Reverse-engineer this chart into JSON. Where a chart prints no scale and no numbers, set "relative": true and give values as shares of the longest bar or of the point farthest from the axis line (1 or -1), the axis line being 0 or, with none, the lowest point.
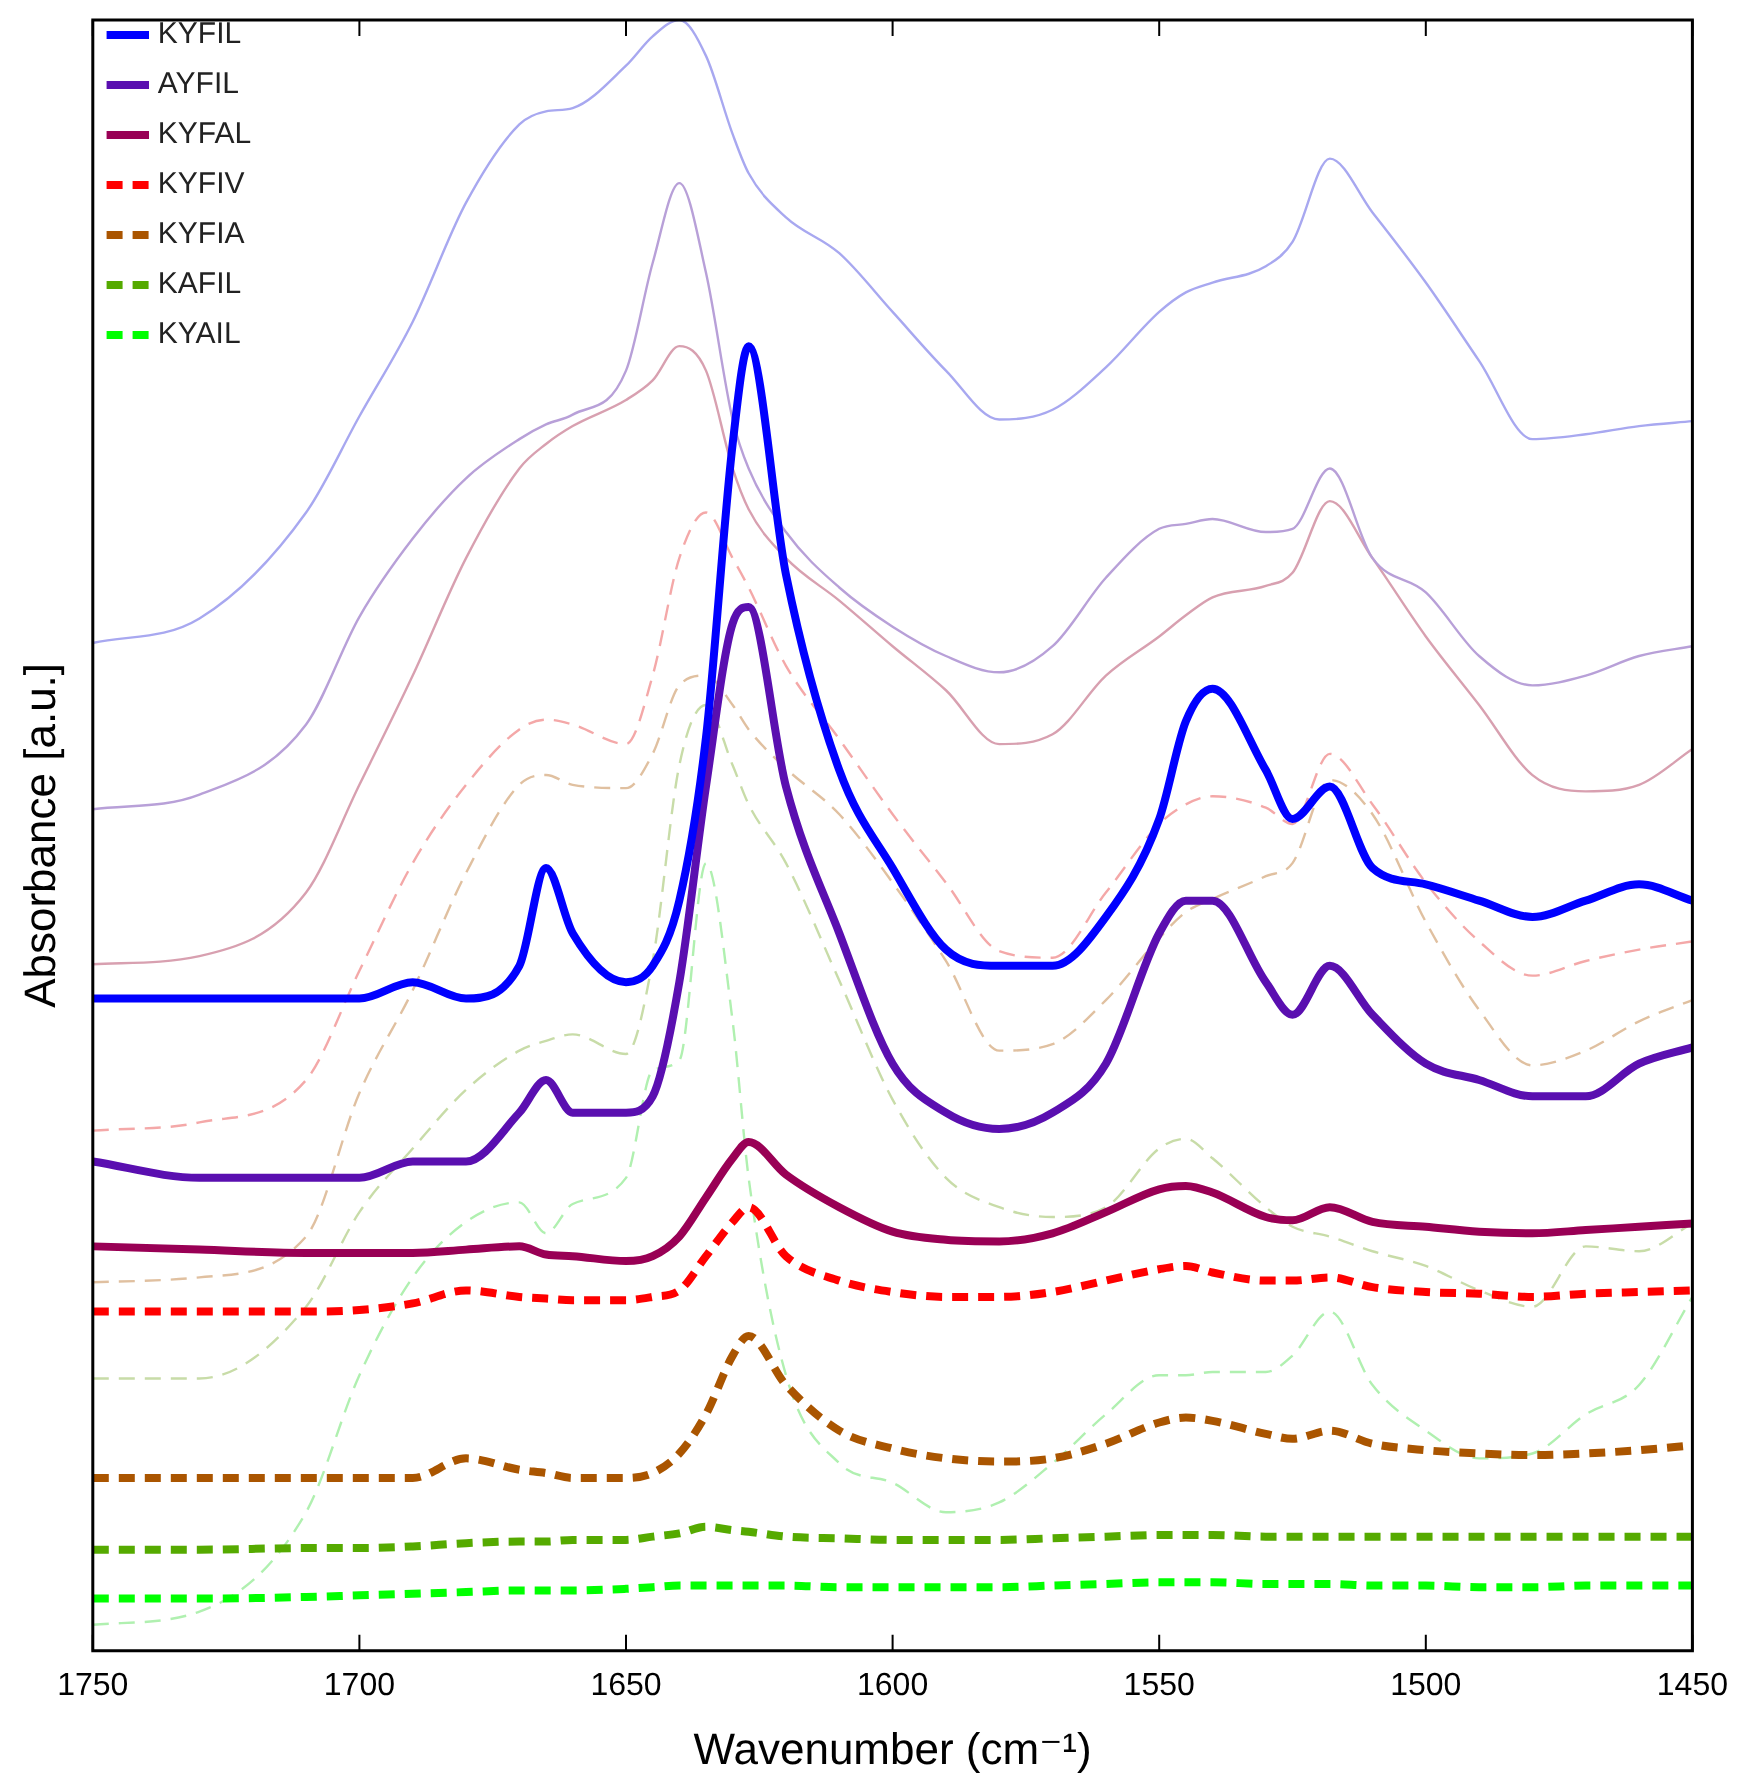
{
  "chart_data": {
    "type": "line",
    "xlabel": "Wavenumber (cm⁻¹)",
    "ylabel": "Absorbance [a.u.]",
    "relative": true,
    "legend": "top left",
    "grid": false,
    "marker": "none",
    "x": [
      1750,
      1730,
      1710,
      1700,
      1690,
      1680,
      1670,
      1665,
      1660,
      1650,
      1645,
      1640,
      1635,
      1630,
      1627,
      1620,
      1610,
      1600,
      1590,
      1580,
      1570,
      1560,
      1550,
      1545,
      1540,
      1530,
      1525,
      1518,
      1510,
      1500,
      1490,
      1480,
      1470,
      1460,
      1450
    ],
    "xlim": [
      1750,
      1450
    ],
    "xticks": [
      1750,
      1700,
      1650,
      1600,
      1550,
      1500,
      1450
    ],
    "series": [
      {
        "name": "KYFIL",
        "color": "#0000ff",
        "line_style": "solid",
        "values": [
          0.4,
          0.4,
          0.4,
          0.4,
          0.41,
          0.4,
          0.42,
          0.48,
          0.44,
          0.41,
          0.42,
          0.46,
          0.56,
          0.74,
          0.8,
          0.66,
          0.54,
          0.48,
          0.43,
          0.42,
          0.42,
          0.45,
          0.51,
          0.57,
          0.59,
          0.54,
          0.51,
          0.53,
          0.48,
          0.47,
          0.46,
          0.45,
          0.46,
          0.47,
          0.46
        ]
      },
      {
        "name": "AYFIL",
        "color": "#5a0fb0",
        "line_style": "solid",
        "values": [
          0.3,
          0.29,
          0.29,
          0.29,
          0.3,
          0.3,
          0.33,
          0.35,
          0.33,
          0.33,
          0.34,
          0.41,
          0.53,
          0.63,
          0.64,
          0.53,
          0.44,
          0.36,
          0.33,
          0.32,
          0.33,
          0.36,
          0.44,
          0.46,
          0.46,
          0.41,
          0.39,
          0.42,
          0.39,
          0.36,
          0.35,
          0.34,
          0.34,
          0.36,
          0.37
        ]
      },
      {
        "name": "KYFAL",
        "color": "#990055",
        "line_style": "solid",
        "values": [
          0.248,
          0.246,
          0.244,
          0.244,
          0.244,
          0.246,
          0.248,
          0.243,
          0.242,
          0.239,
          0.242,
          0.254,
          0.278,
          0.302,
          0.312,
          0.292,
          0.272,
          0.257,
          0.252,
          0.251,
          0.256,
          0.269,
          0.283,
          0.285,
          0.281,
          0.266,
          0.264,
          0.272,
          0.263,
          0.26,
          0.257,
          0.256,
          0.258,
          0.26,
          0.262
        ]
      },
      {
        "name": "KYFIV",
        "color": "#ff0000",
        "line_style": "dashed",
        "values": [
          0.208,
          0.208,
          0.208,
          0.209,
          0.213,
          0.221,
          0.217,
          0.216,
          0.215,
          0.215,
          0.217,
          0.221,
          0.242,
          0.263,
          0.272,
          0.242,
          0.227,
          0.22,
          0.217,
          0.217,
          0.22,
          0.227,
          0.234,
          0.236,
          0.232,
          0.227,
          0.227,
          0.229,
          0.223,
          0.22,
          0.219,
          0.217,
          0.219,
          0.22,
          0.221
        ]
      },
      {
        "name": "KYFIA",
        "color": "#aa5500",
        "line_style": "dashed",
        "values": [
          0.106,
          0.106,
          0.106,
          0.106,
          0.106,
          0.118,
          0.111,
          0.109,
          0.106,
          0.106,
          0.109,
          0.121,
          0.145,
          0.181,
          0.193,
          0.163,
          0.135,
          0.124,
          0.118,
          0.116,
          0.118,
          0.127,
          0.14,
          0.143,
          0.141,
          0.133,
          0.13,
          0.135,
          0.127,
          0.123,
          0.121,
          0.12,
          0.121,
          0.123,
          0.126
        ]
      },
      {
        "name": "KAFIL",
        "color": "#55aa00",
        "line_style": "dashed",
        "values": [
          0.062,
          0.062,
          0.063,
          0.063,
          0.064,
          0.066,
          0.067,
          0.067,
          0.068,
          0.068,
          0.07,
          0.072,
          0.076,
          0.074,
          0.073,
          0.07,
          0.069,
          0.068,
          0.068,
          0.068,
          0.069,
          0.07,
          0.071,
          0.071,
          0.071,
          0.07,
          0.07,
          0.07,
          0.07,
          0.07,
          0.07,
          0.07,
          0.07,
          0.07,
          0.07
        ]
      },
      {
        "name": "KYAIL",
        "color": "#00ff00",
        "line_style": "dashed",
        "values": [
          0.032,
          0.032,
          0.033,
          0.034,
          0.035,
          0.036,
          0.037,
          0.037,
          0.037,
          0.038,
          0.039,
          0.04,
          0.04,
          0.04,
          0.04,
          0.04,
          0.039,
          0.039,
          0.039,
          0.039,
          0.04,
          0.041,
          0.042,
          0.042,
          0.042,
          0.041,
          0.041,
          0.041,
          0.04,
          0.04,
          0.039,
          0.039,
          0.04,
          0.04,
          0.04
        ]
      },
      {
        "color": "#a8a8f0",
        "line_style": "solid",
        "values": [
          0.618,
          0.633,
          0.698,
          0.757,
          0.815,
          0.888,
          0.936,
          0.944,
          0.946,
          0.972,
          0.99,
          1,
          0.978,
          0.93,
          0.906,
          0.879,
          0.857,
          0.821,
          0.785,
          0.755,
          0.761,
          0.787,
          0.821,
          0.833,
          0.839,
          0.849,
          0.864,
          0.915,
          0.882,
          0.839,
          0.791,
          0.743,
          0.746,
          0.751,
          0.754
        ]
      },
      {
        "color": "#b8a0d8",
        "line_style": "solid",
        "values": [
          0.516,
          0.525,
          0.568,
          0.634,
          0.682,
          0.719,
          0.743,
          0.752,
          0.758,
          0.785,
          0.851,
          0.9,
          0.845,
          0.755,
          0.725,
          0.686,
          0.652,
          0.628,
          0.61,
          0.6,
          0.616,
          0.658,
          0.688,
          0.691,
          0.694,
          0.686,
          0.688,
          0.725,
          0.67,
          0.649,
          0.61,
          0.592,
          0.598,
          0.61,
          0.616
        ]
      },
      {
        "color": "#d8a0b0",
        "line_style": "solid",
        "values": [
          0.421,
          0.426,
          0.465,
          0.531,
          0.598,
          0.67,
          0.725,
          0.74,
          0.751,
          0.767,
          0.779,
          0.8,
          0.785,
          0.725,
          0.7,
          0.67,
          0.644,
          0.616,
          0.589,
          0.556,
          0.562,
          0.598,
          0.622,
          0.635,
          0.646,
          0.653,
          0.661,
          0.705,
          0.67,
          0.622,
          0.58,
          0.537,
          0.527,
          0.531,
          0.553
        ]
      },
      {
        "color": "#f4a8a8",
        "line_style": "dashed",
        "values": [
          0.319,
          0.324,
          0.35,
          0.417,
          0.483,
          0.531,
          0.565,
          0.571,
          0.568,
          0.556,
          0.598,
          0.67,
          0.698,
          0.67,
          0.652,
          0.604,
          0.559,
          0.513,
          0.471,
          0.429,
          0.425,
          0.465,
          0.507,
          0.519,
          0.524,
          0.517,
          0.507,
          0.55,
          0.519,
          0.471,
          0.435,
          0.414,
          0.423,
          0.43,
          0.435
        ]
      },
      {
        "color": "#e0c0a0",
        "line_style": "dashed",
        "values": [
          0.226,
          0.229,
          0.254,
          0.342,
          0.405,
          0.477,
          0.531,
          0.537,
          0.531,
          0.529,
          0.55,
          0.592,
          0.598,
          0.58,
          0.565,
          0.541,
          0.513,
          0.471,
          0.423,
          0.368,
          0.372,
          0.399,
          0.437,
          0.453,
          0.461,
          0.475,
          0.483,
          0.534,
          0.513,
          0.447,
          0.393,
          0.359,
          0.368,
          0.386,
          0.399
        ]
      },
      {
        "color": "#c8dca8",
        "line_style": "dashed",
        "values": [
          0.167,
          0.167,
          0.211,
          0.269,
          0.308,
          0.344,
          0.368,
          0.374,
          0.378,
          0.366,
          0.423,
          0.543,
          0.58,
          0.543,
          0.519,
          0.483,
          0.411,
          0.338,
          0.29,
          0.272,
          0.266,
          0.272,
          0.308,
          0.314,
          0.302,
          0.272,
          0.26,
          0.254,
          0.245,
          0.236,
          0.221,
          0.211,
          0.248,
          0.245,
          0.262
        ]
      },
      {
        "color": "#b0f0b0",
        "line_style": "dashed",
        "values": [
          0.016,
          0.024,
          0.085,
          0.169,
          0.229,
          0.263,
          0.275,
          0.256,
          0.274,
          0.29,
          0.356,
          0.362,
          0.483,
          0.386,
          0.29,
          0.169,
          0.115,
          0.103,
          0.085,
          0.091,
          0.115,
          0.145,
          0.169,
          0.169,
          0.171,
          0.171,
          0.181,
          0.208,
          0.163,
          0.135,
          0.118,
          0.121,
          0.145,
          0.163,
          0.217
        ]
      }
    ]
  }
}
